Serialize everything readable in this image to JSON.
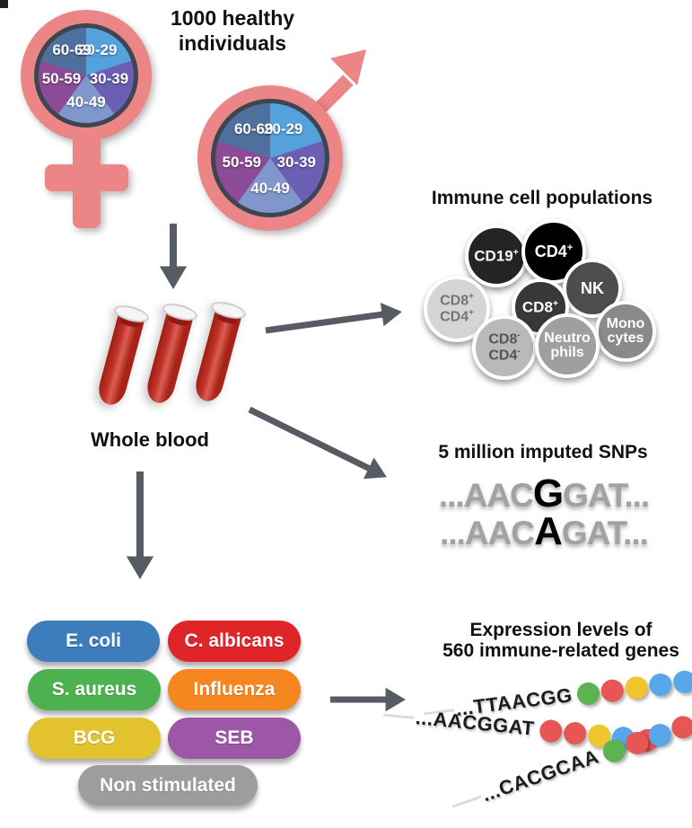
{
  "cohort": {
    "title_line1": "1000 healthy",
    "title_line2": "individuals"
  },
  "demographics": {
    "symbol_color": "#ec8585",
    "symbols": [
      "female",
      "male"
    ],
    "age_groups": [
      {
        "label": "20-29",
        "color": "#54a1dc"
      },
      {
        "label": "30-39",
        "color": "#6a5fb2"
      },
      {
        "label": "40-49",
        "color": "#8096cc"
      },
      {
        "label": "50-59",
        "color": "#8c4b96"
      },
      {
        "label": "60-69",
        "color": "#4f709c"
      }
    ]
  },
  "whole_blood_label": "Whole blood",
  "immune_cells": {
    "title": "Immune cell populations",
    "cells": [
      {
        "id": "cd19",
        "lines": [
          {
            "text": "CD19",
            "sup": "+"
          }
        ],
        "bg": "#242424",
        "fg": "#ffffff"
      },
      {
        "id": "cd4",
        "lines": [
          {
            "text": "CD4",
            "sup": "+"
          }
        ],
        "bg": "#000000",
        "fg": "#ffffff"
      },
      {
        "id": "nk",
        "lines": [
          {
            "text": "NK",
            "sup": ""
          }
        ],
        "bg": "#4d4d4d",
        "fg": "#ffffff"
      },
      {
        "id": "monocytes",
        "lines": [
          {
            "text": "Mono",
            "sup": ""
          },
          {
            "text": "cytes",
            "sup": ""
          }
        ],
        "bg": "#8a8a8a",
        "fg": "#ffffff"
      },
      {
        "id": "cd8",
        "lines": [
          {
            "text": "CD8",
            "sup": "+"
          }
        ],
        "bg": "#383838",
        "fg": "#ffffff"
      },
      {
        "id": "cd8cd4pos",
        "lines": [
          {
            "text": "CD8",
            "sup": "+"
          },
          {
            "text": "CD4",
            "sup": "+"
          }
        ],
        "bg": "#d5d5d5",
        "fg": "#757575"
      },
      {
        "id": "cd8cd4neg",
        "lines": [
          {
            "text": "CD8",
            "sup": "-"
          },
          {
            "text": "CD4",
            "sup": "-"
          }
        ],
        "bg": "#b9b9b9",
        "fg": "#555555"
      },
      {
        "id": "neutrophils",
        "lines": [
          {
            "text": "Neutro",
            "sup": ""
          },
          {
            "text": "phils",
            "sup": ""
          }
        ],
        "bg": "#9f9f9f",
        "fg": "#ffffff"
      }
    ]
  },
  "snps": {
    "title": "5 million imputed SNPs",
    "sequences": [
      {
        "pre": "...AAC",
        "variant": "G",
        "post": "GAT..."
      },
      {
        "pre": "...AAC",
        "variant": "A",
        "post": "GAT..."
      }
    ]
  },
  "stimulations": {
    "pills": [
      {
        "label": "E. coli",
        "color": "#3d7dbb"
      },
      {
        "label": "C. albicans",
        "color": "#e02529"
      },
      {
        "label": "S. aureus",
        "color": "#4cb250"
      },
      {
        "label": "Influenza",
        "color": "#f6861f"
      },
      {
        "label": "BCG",
        "color": "#e2c32d"
      },
      {
        "label": "SEB",
        "color": "#9c58a6"
      },
      {
        "label": "Non stimulated",
        "color": "#9d9d9d"
      }
    ]
  },
  "expression": {
    "title_line1": "Expression levels of",
    "title_line2": "560 immune-related genes",
    "dot_colors": {
      "green": "#5cb350",
      "red": "#e85555",
      "yellow": "#f0c52e",
      "blue": "#58a7e8"
    },
    "strands": [
      {
        "text": "...TTAACGG",
        "dots": [
          "green",
          "red",
          "yellow",
          "blue",
          "blue"
        ]
      },
      {
        "text": "...AACGGAT",
        "dots": [
          "red",
          "red",
          "yellow",
          "blue",
          "red"
        ]
      },
      {
        "text": "...CACGCAA",
        "dots": [
          "green",
          "red",
          "blue",
          "red",
          "red"
        ]
      }
    ]
  },
  "colors": {
    "arrow": "#565b64"
  }
}
